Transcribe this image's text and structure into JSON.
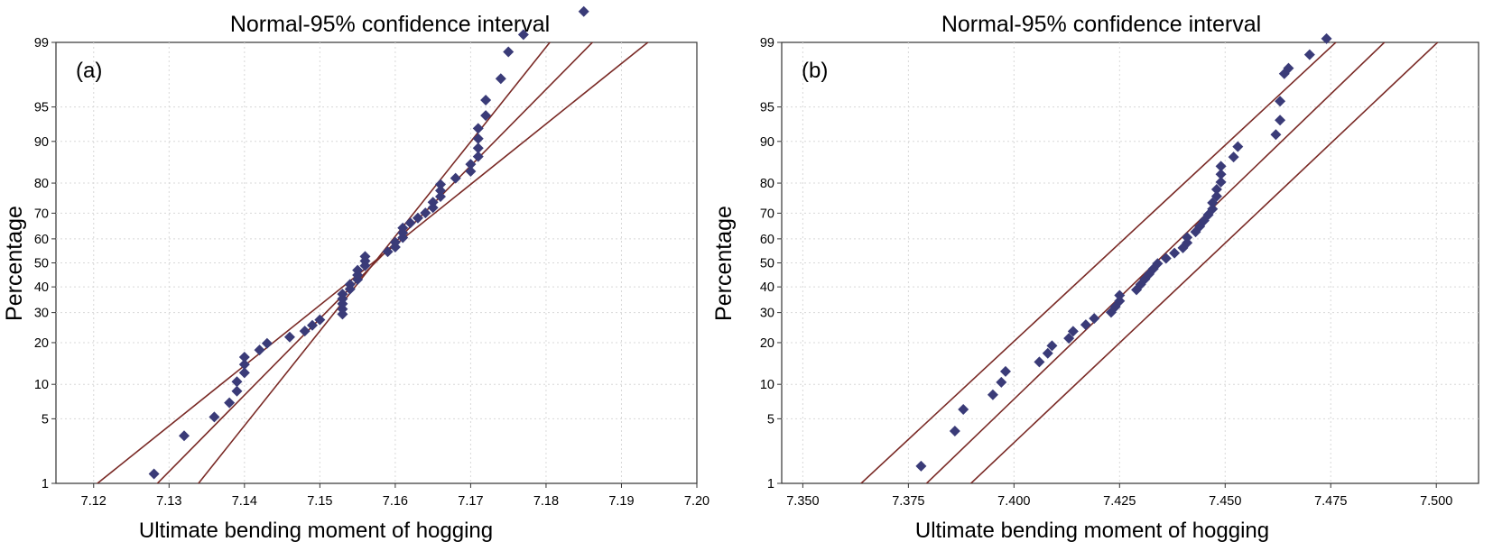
{
  "chart_data": [
    {
      "type": "scatter",
      "title": "Normal-95% confidence interval",
      "panel_label": "(a)",
      "xlabel": "Ultimate bending moment of hogging",
      "ylabel": "Percentage",
      "y_scale": "normal-probability",
      "xlim": [
        7.115,
        7.2
      ],
      "xticks": [
        7.12,
        7.13,
        7.14,
        7.15,
        7.16,
        7.17,
        7.18,
        7.19,
        7.2
      ],
      "xtick_labels": [
        "7.12",
        "7.13",
        "7.14",
        "7.15",
        "7.16",
        "7.17",
        "7.18",
        "7.19",
        "7.20"
      ],
      "yticks": [
        1,
        5,
        10,
        20,
        30,
        40,
        50,
        60,
        70,
        80,
        90,
        95,
        99
      ],
      "grid": true,
      "fit_line": {
        "mean": 7.1573,
        "sd": 0.0124
      },
      "ci_band": {
        "upper_at_p1": 7.1339,
        "upper_at_p99": 7.1805,
        "lower_at_p1": 7.1205,
        "lower_at_p99": 7.1935
      },
      "series": [
        {
          "x": [
            7.128,
            7.132,
            7.136,
            7.138,
            7.139,
            7.139,
            7.14,
            7.14,
            7.14,
            7.142,
            7.143,
            7.146,
            7.148,
            7.149,
            7.15,
            7.153,
            7.153,
            7.153,
            7.153,
            7.153,
            7.154,
            7.154,
            7.155,
            7.155,
            7.155,
            7.156,
            7.156,
            7.156,
            7.159,
            7.16,
            7.16,
            7.161,
            7.161,
            7.161,
            7.162,
            7.163,
            7.164,
            7.165,
            7.165,
            7.166,
            7.166,
            7.166,
            7.168,
            7.17,
            7.17,
            7.171,
            7.171,
            7.171,
            7.171,
            7.172,
            7.172,
            7.174,
            7.175,
            7.177,
            7.185
          ],
          "y": [
            1.3,
            3.4,
            5.2,
            7.0,
            8.8,
            10.5,
            12.3,
            14.2,
            16.0,
            17.9,
            19.8,
            21.7,
            23.6,
            25.5,
            27.4,
            29.4,
            31.3,
            33.3,
            35.2,
            37.1,
            39.1,
            41.0,
            43.0,
            44.9,
            46.9,
            48.8,
            50.8,
            52.7,
            54.7,
            56.6,
            58.6,
            60.5,
            62.4,
            64.4,
            66.3,
            68.2,
            70.1,
            72.0,
            73.9,
            75.8,
            77.7,
            79.6,
            81.4,
            83.3,
            85.1,
            86.9,
            88.7,
            90.5,
            92.2,
            94.0,
            95.7,
            97.4,
            98.7,
            99.2,
            99.6
          ]
        }
      ]
    },
    {
      "type": "scatter",
      "title": "Normal-95% confidence interval",
      "panel_label": "(b)",
      "xlabel": "Ultimate bending moment of hogging",
      "ylabel": "Percentage",
      "y_scale": "normal-probability",
      "xlim": [
        7.345,
        7.51
      ],
      "xticks": [
        7.35,
        7.375,
        7.4,
        7.425,
        7.45,
        7.475,
        7.5
      ],
      "xtick_labels": [
        "7.350",
        "7.375",
        "7.400",
        "7.425",
        "7.450",
        "7.475",
        "7.500"
      ],
      "yticks": [
        1,
        5,
        10,
        20,
        30,
        40,
        50,
        60,
        70,
        80,
        90,
        95,
        99
      ],
      "grid": true,
      "fit_line": {
        "mean": 7.4335,
        "sd": 0.0233
      },
      "ci_band": {
        "upper_at_p1": 7.3638,
        "upper_at_p99": 7.4762,
        "lower_at_p1": 7.3898,
        "lower_at_p99": 7.5003
      },
      "series": [
        {
          "x": [
            7.378,
            7.386,
            7.388,
            7.395,
            7.397,
            7.398,
            7.406,
            7.408,
            7.409,
            7.413,
            7.414,
            7.417,
            7.419,
            7.423,
            7.424,
            7.425,
            7.425,
            7.429,
            7.43,
            7.431,
            7.432,
            7.433,
            7.434,
            7.436,
            7.438,
            7.44,
            7.441,
            7.441,
            7.443,
            7.444,
            7.445,
            7.446,
            7.447,
            7.447,
            7.448,
            7.448,
            7.449,
            7.449,
            7.449,
            7.452,
            7.453,
            7.462,
            7.463,
            7.463,
            7.464,
            7.465,
            7.47,
            7.474
          ],
          "y": [
            1.6,
            3.8,
            6.1,
            8.2,
            10.4,
            12.6,
            14.8,
            17.0,
            19.1,
            21.3,
            23.5,
            25.7,
            27.9,
            30.1,
            32.2,
            34.4,
            36.6,
            38.8,
            41.0,
            43.2,
            45.3,
            47.5,
            49.7,
            51.9,
            54.1,
            56.3,
            58.4,
            60.6,
            62.8,
            65.0,
            67.2,
            69.4,
            71.5,
            73.7,
            75.9,
            78.1,
            80.3,
            82.5,
            84.6,
            86.8,
            89.0,
            91.2,
            93.4,
            95.6,
            97.7,
            98.0,
            98.6,
            99.1
          ]
        }
      ]
    }
  ],
  "colors": {
    "marker": "#3a3b78",
    "line": "#7a2a26",
    "axis": "#333333",
    "grid": "#d8d8d8"
  }
}
